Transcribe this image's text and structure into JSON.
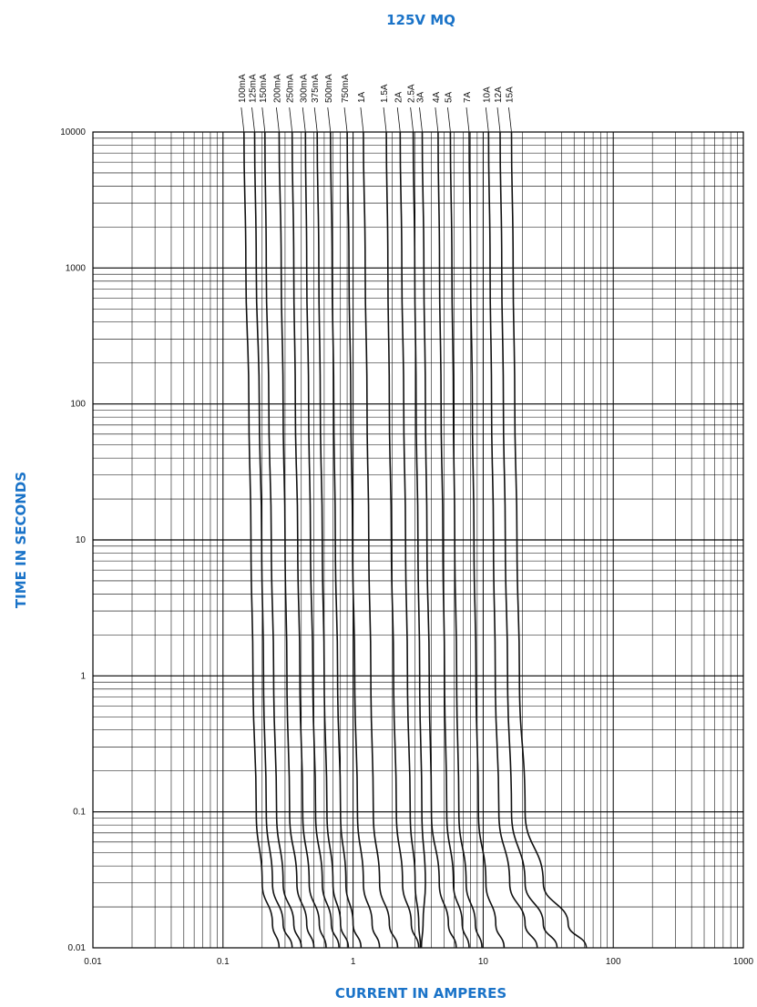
{
  "chart_data": {
    "type": "line",
    "title": "125V MQ",
    "xlabel": "CURRENT IN AMPERES",
    "ylabel": "TIME IN SECONDS",
    "x_scale": "log",
    "y_scale": "log",
    "xlim": [
      0.01,
      1000
    ],
    "ylim": [
      0.01,
      10000
    ],
    "grid": true,
    "x_ticks": [
      {
        "value": 0.01,
        "label": "0.01"
      },
      {
        "value": 0.1,
        "label": "0.1"
      },
      {
        "value": 1,
        "label": "1"
      },
      {
        "value": 10,
        "label": "10"
      },
      {
        "value": 100,
        "label": "100"
      },
      {
        "value": 1000,
        "label": "1000"
      }
    ],
    "y_ticks": [
      {
        "value": 10000,
        "label": "10000"
      },
      {
        "value": 1000,
        "label": "1000"
      },
      {
        "value": 100,
        "label": "100"
      },
      {
        "value": 10,
        "label": "10"
      },
      {
        "value": 1,
        "label": "1"
      },
      {
        "value": 0.1,
        "label": "0.1"
      },
      {
        "value": 0.01,
        "label": "0.01"
      }
    ],
    "series": [
      {
        "name": "100mA",
        "points": [
          [
            0.145,
            10000
          ],
          [
            0.15,
            1000
          ],
          [
            0.158,
            100
          ],
          [
            0.164,
            10
          ],
          [
            0.17,
            1
          ],
          [
            0.18,
            0.1
          ],
          [
            0.2,
            0.03
          ],
          [
            0.24,
            0.015
          ],
          [
            0.27,
            0.01
          ]
        ]
      },
      {
        "name": "125mA",
        "points": [
          [
            0.175,
            10000
          ],
          [
            0.18,
            1000
          ],
          [
            0.19,
            100
          ],
          [
            0.198,
            10
          ],
          [
            0.205,
            1
          ],
          [
            0.215,
            0.1
          ],
          [
            0.24,
            0.03
          ],
          [
            0.29,
            0.015
          ],
          [
            0.34,
            0.01
          ]
        ]
      },
      {
        "name": "150mA",
        "points": [
          [
            0.21,
            10000
          ],
          [
            0.215,
            1000
          ],
          [
            0.225,
            100
          ],
          [
            0.235,
            10
          ],
          [
            0.245,
            1
          ],
          [
            0.258,
            0.1
          ],
          [
            0.29,
            0.03
          ],
          [
            0.35,
            0.015
          ],
          [
            0.4,
            0.01
          ]
        ]
      },
      {
        "name": "200mA",
        "points": [
          [
            0.27,
            10000
          ],
          [
            0.28,
            1000
          ],
          [
            0.29,
            100
          ],
          [
            0.3,
            10
          ],
          [
            0.31,
            1
          ],
          [
            0.325,
            0.1
          ],
          [
            0.37,
            0.03
          ],
          [
            0.44,
            0.015
          ],
          [
            0.5,
            0.01
          ]
        ]
      },
      {
        "name": "250mA",
        "points": [
          [
            0.34,
            10000
          ],
          [
            0.35,
            1000
          ],
          [
            0.36,
            100
          ],
          [
            0.375,
            10
          ],
          [
            0.39,
            1
          ],
          [
            0.41,
            0.1
          ],
          [
            0.46,
            0.03
          ],
          [
            0.55,
            0.015
          ],
          [
            0.62,
            0.01
          ]
        ]
      },
      {
        "name": "300mA",
        "points": [
          [
            0.43,
            10000
          ],
          [
            0.44,
            1000
          ],
          [
            0.455,
            100
          ],
          [
            0.47,
            10
          ],
          [
            0.49,
            1
          ],
          [
            0.515,
            0.1
          ],
          [
            0.58,
            0.03
          ],
          [
            0.68,
            0.015
          ],
          [
            0.78,
            0.01
          ]
        ]
      },
      {
        "name": "375mA",
        "points": [
          [
            0.53,
            10000
          ],
          [
            0.545,
            1000
          ],
          [
            0.56,
            100
          ],
          [
            0.58,
            10
          ],
          [
            0.6,
            1
          ],
          [
            0.63,
            0.1
          ],
          [
            0.7,
            0.03
          ],
          [
            0.8,
            0.015
          ],
          [
            0.92,
            0.01
          ]
        ]
      },
      {
        "name": "500mA",
        "points": [
          [
            0.67,
            10000
          ],
          [
            0.69,
            1000
          ],
          [
            0.71,
            100
          ],
          [
            0.73,
            10
          ],
          [
            0.76,
            1
          ],
          [
            0.8,
            0.1
          ],
          [
            0.88,
            0.03
          ],
          [
            1.0,
            0.015
          ],
          [
            1.15,
            0.01
          ]
        ]
      },
      {
        "name": "750mA",
        "points": [
          [
            0.9,
            10000
          ],
          [
            0.93,
            1000
          ],
          [
            0.96,
            100
          ],
          [
            0.99,
            10
          ],
          [
            1.03,
            1
          ],
          [
            1.08,
            0.1
          ],
          [
            1.2,
            0.03
          ],
          [
            1.4,
            0.015
          ],
          [
            1.6,
            0.01
          ]
        ]
      },
      {
        "name": "1A",
        "points": [
          [
            1.2,
            10000
          ],
          [
            1.24,
            1000
          ],
          [
            1.28,
            100
          ],
          [
            1.32,
            10
          ],
          [
            1.37,
            1
          ],
          [
            1.43,
            0.1
          ],
          [
            1.6,
            0.03
          ],
          [
            1.9,
            0.015
          ],
          [
            2.2,
            0.01
          ]
        ]
      },
      {
        "name": "1.5A",
        "points": [
          [
            1.8,
            10000
          ],
          [
            1.85,
            1000
          ],
          [
            1.9,
            100
          ],
          [
            1.97,
            10
          ],
          [
            2.05,
            1
          ],
          [
            2.15,
            0.1
          ],
          [
            2.4,
            0.03
          ],
          [
            2.8,
            0.015
          ],
          [
            3.2,
            0.01
          ]
        ]
      },
      {
        "name": "2A",
        "points": [
          [
            2.3,
            10000
          ],
          [
            2.37,
            1000
          ],
          [
            2.45,
            100
          ],
          [
            2.53,
            10
          ],
          [
            2.62,
            1
          ],
          [
            2.75,
            0.1
          ],
          [
            3.0,
            0.03
          ],
          [
            3.2,
            0.015
          ],
          [
            3.3,
            0.01
          ]
        ]
      },
      {
        "name": "2.5A",
        "points": [
          [
            2.9,
            10000
          ],
          [
            2.98,
            1000
          ],
          [
            3.05,
            100
          ],
          [
            3.15,
            10
          ],
          [
            3.25,
            1
          ],
          [
            3.38,
            0.1
          ],
          [
            3.6,
            0.03
          ],
          [
            3.45,
            0.015
          ],
          [
            3.35,
            0.01
          ]
        ]
      },
      {
        "name": "3A",
        "points": [
          [
            3.4,
            10000
          ],
          [
            3.5,
            1000
          ],
          [
            3.6,
            100
          ],
          [
            3.7,
            10
          ],
          [
            3.85,
            1
          ],
          [
            4.0,
            0.1
          ],
          [
            4.6,
            0.03
          ],
          [
            5.4,
            0.015
          ],
          [
            6.2,
            0.01
          ]
        ]
      },
      {
        "name": "4A",
        "points": [
          [
            4.5,
            10000
          ],
          [
            4.62,
            1000
          ],
          [
            4.75,
            100
          ],
          [
            4.9,
            10
          ],
          [
            5.05,
            1
          ],
          [
            5.25,
            0.1
          ],
          [
            5.9,
            0.03
          ],
          [
            6.9,
            0.015
          ],
          [
            7.8,
            0.01
          ]
        ]
      },
      {
        "name": "5A",
        "points": [
          [
            5.6,
            10000
          ],
          [
            5.75,
            1000
          ],
          [
            5.9,
            100
          ],
          [
            6.05,
            10
          ],
          [
            6.25,
            1
          ],
          [
            6.5,
            0.1
          ],
          [
            7.4,
            0.03
          ],
          [
            8.7,
            0.015
          ],
          [
            9.8,
            0.01
          ]
        ]
      },
      {
        "name": "7A",
        "points": [
          [
            7.8,
            10000
          ],
          [
            8.0,
            1000
          ],
          [
            8.25,
            100
          ],
          [
            8.5,
            10
          ],
          [
            8.8,
            1
          ],
          [
            9.2,
            0.1
          ],
          [
            10.5,
            0.03
          ],
          [
            12.5,
            0.015
          ],
          [
            14.5,
            0.01
          ]
        ]
      },
      {
        "name": "10A",
        "points": [
          [
            11.0,
            10000
          ],
          [
            11.3,
            1000
          ],
          [
            11.6,
            100
          ],
          [
            12.0,
            10
          ],
          [
            12.4,
            1
          ],
          [
            13.2,
            0.1
          ],
          [
            16.0,
            0.03
          ],
          [
            21.0,
            0.015
          ],
          [
            26.0,
            0.01
          ]
        ]
      },
      {
        "name": "12A",
        "points": [
          [
            13.5,
            10000
          ],
          [
            13.9,
            1000
          ],
          [
            14.3,
            100
          ],
          [
            14.8,
            10
          ],
          [
            15.4,
            1
          ],
          [
            16.5,
            0.1
          ],
          [
            21.0,
            0.03
          ],
          [
            29.0,
            0.015
          ],
          [
            37.0,
            0.01
          ]
        ]
      },
      {
        "name": "15A",
        "points": [
          [
            16.5,
            10000
          ],
          [
            17.0,
            1000
          ],
          [
            17.5,
            100
          ],
          [
            18.2,
            10
          ],
          [
            19.0,
            1
          ],
          [
            21.0,
            0.1
          ],
          [
            29.0,
            0.03
          ],
          [
            45.0,
            0.015
          ],
          [
            62.0,
            0.01
          ]
        ]
      }
    ]
  }
}
